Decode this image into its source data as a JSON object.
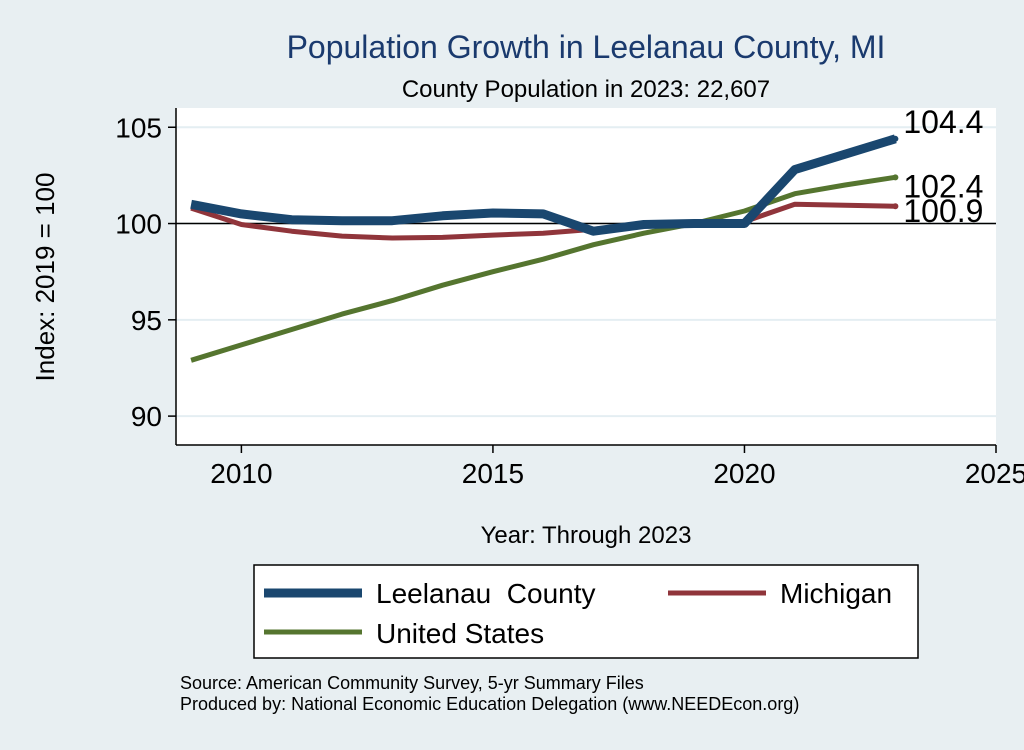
{
  "chart_data": {
    "type": "line",
    "title": "Population Growth in Leelanau County, MI",
    "subtitle": "County Population in 2023: 22,607",
    "xlabel": "Year: Through 2023",
    "ylabel": "Index: 2019 = 100",
    "xlim": [
      2008.7,
      2025
    ],
    "ylim": [
      90,
      105
    ],
    "x_ticks": [
      2010,
      2015,
      2020,
      2025
    ],
    "y_ticks": [
      90,
      95,
      100,
      105
    ],
    "reference_line": 100,
    "grid": true,
    "legend_position": "bottom",
    "x": [
      2009,
      2010,
      2011,
      2012,
      2013,
      2014,
      2015,
      2016,
      2017,
      2018,
      2019,
      2020,
      2021,
      2022,
      2023
    ],
    "series": [
      {
        "name": "Leelanau  County",
        "color": "#1a476f",
        "values": [
          101.0,
          100.5,
          100.2,
          100.15,
          100.15,
          100.4,
          100.55,
          100.5,
          99.6,
          99.95,
          100.0,
          100.0,
          102.8,
          103.6,
          104.4
        ],
        "end_label": "104.4"
      },
      {
        "name": "Michigan",
        "color": "#90353b",
        "values": [
          100.8,
          99.95,
          99.6,
          99.35,
          99.25,
          99.28,
          99.4,
          99.5,
          99.7,
          99.95,
          100.0,
          100.1,
          101.0,
          100.95,
          100.9
        ],
        "end_label": "100.9"
      },
      {
        "name": "United States",
        "color": "#55752f",
        "values": [
          92.9,
          93.7,
          94.5,
          95.3,
          96.0,
          96.8,
          97.5,
          98.15,
          98.9,
          99.5,
          100.0,
          100.65,
          101.55,
          102.0,
          102.4
        ],
        "end_label": "102.4"
      }
    ]
  },
  "notes": {
    "source": "Source: American Community Survey, 5-yr Summary Files",
    "produced_by": "Produced by: National Economic Education Delegation (www.NEEDEcon.org)"
  }
}
